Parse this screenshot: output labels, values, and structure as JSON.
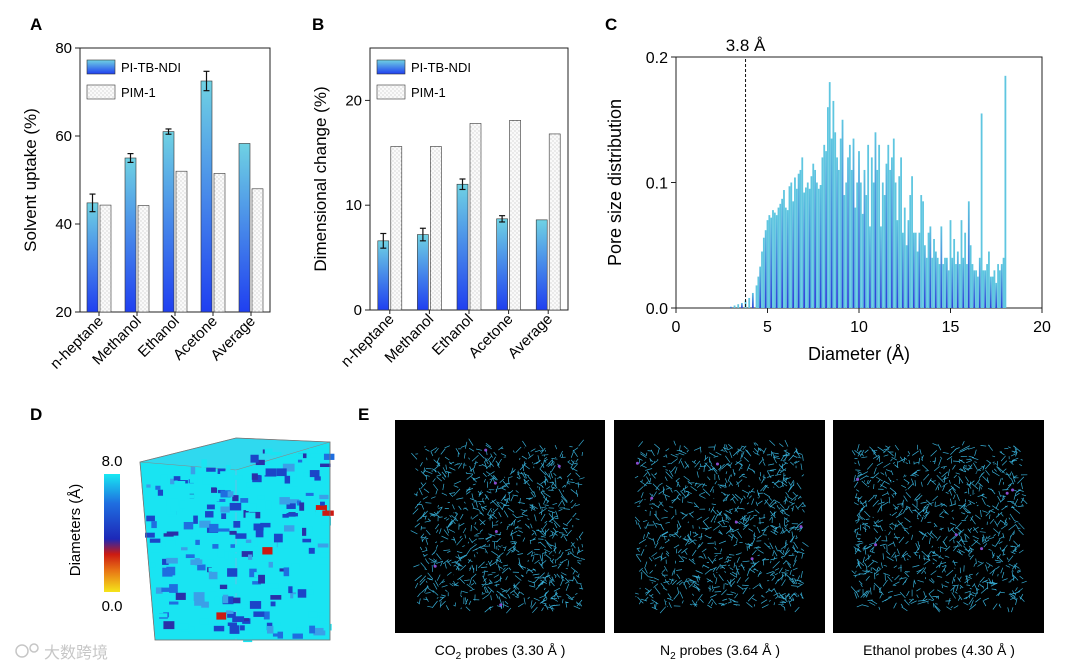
{
  "panels": {
    "a": {
      "letter": "A"
    },
    "b": {
      "letter": "B"
    },
    "c": {
      "letter": "C"
    },
    "d": {
      "letter": "D"
    },
    "e": {
      "letter": "E"
    }
  },
  "colors": {
    "bar_dark": "#1f3ff0",
    "bar_light": "#6fd2e3",
    "pim_fill": "#fafafa",
    "psd_bar_dark": "#2a42d8",
    "psd_bar_light": "#5fc6e0",
    "snapshot_bg": "#000000",
    "network": "#3cc0ec",
    "cube_cyan": "#19e4f2",
    "cube_blue": "#1b45c8"
  },
  "chart_data": [
    {
      "id": "a",
      "type": "bar",
      "categories": [
        "n-heptane",
        "Methanol",
        "Ethanol",
        "Acetone",
        "Average"
      ],
      "series": [
        {
          "name": "PI-TB-NDI",
          "values": [
            44.8,
            55.0,
            61.0,
            72.5,
            58.3
          ],
          "errors": [
            2.0,
            1.0,
            0.6,
            2.2,
            0
          ]
        },
        {
          "name": "PIM-1",
          "values": [
            44.3,
            44.2,
            52.0,
            51.5,
            48.0
          ],
          "errors": [
            0,
            0,
            0,
            0,
            0
          ]
        }
      ],
      "ylabel": "Solvent uptake (%)",
      "xlabel": "",
      "ylim": [
        20,
        80
      ],
      "yticks": [
        20,
        40,
        60,
        80
      ],
      "legend_position": "top-left"
    },
    {
      "id": "b",
      "type": "bar",
      "categories": [
        "n-heptane",
        "Methanol",
        "Ethanol",
        "Acetone",
        "Average"
      ],
      "series": [
        {
          "name": "PI-TB-NDI",
          "values": [
            6.6,
            7.2,
            12.0,
            8.7,
            8.6
          ],
          "errors": [
            0.7,
            0.6,
            0.5,
            0.3,
            0
          ]
        },
        {
          "name": "PIM-1",
          "values": [
            15.6,
            15.6,
            17.8,
            18.1,
            16.8
          ],
          "errors": [
            0,
            0,
            0,
            0,
            0
          ]
        }
      ],
      "ylabel": "Dimensional change (%)",
      "xlabel": "",
      "ylim": [
        0,
        25
      ],
      "yticks": [
        0,
        10,
        20
      ],
      "legend_position": "top-left"
    },
    {
      "id": "c",
      "type": "bar",
      "title": "",
      "xlabel": "Diameter (Å)",
      "ylabel": "Pore size distribution",
      "xlim": [
        0,
        20
      ],
      "ylim": [
        0,
        0.2
      ],
      "xticks": [
        0,
        5,
        10,
        15,
        20
      ],
      "yticks": [
        0.0,
        0.1,
        0.2
      ],
      "ytick_labels": [
        "0.0",
        "0.1",
        "0.2"
      ],
      "annotation": {
        "text": "3.8 Å",
        "x": 3.8
      },
      "x": [
        3.0,
        3.2,
        3.4,
        3.6,
        3.8,
        4.0,
        4.2,
        4.4,
        4.5,
        4.6,
        4.7,
        4.8,
        4.9,
        5.0,
        5.1,
        5.2,
        5.3,
        5.4,
        5.5,
        5.6,
        5.7,
        5.8,
        5.9,
        6.0,
        6.1,
        6.2,
        6.3,
        6.4,
        6.5,
        6.6,
        6.7,
        6.8,
        6.9,
        7.0,
        7.1,
        7.2,
        7.3,
        7.4,
        7.5,
        7.6,
        7.7,
        7.8,
        7.9,
        8.0,
        8.1,
        8.2,
        8.3,
        8.4,
        8.5,
        8.6,
        8.7,
        8.8,
        8.9,
        9.0,
        9.1,
        9.2,
        9.3,
        9.4,
        9.5,
        9.6,
        9.7,
        9.8,
        9.9,
        10.0,
        10.1,
        10.2,
        10.3,
        10.4,
        10.5,
        10.6,
        10.7,
        10.8,
        10.9,
        11.0,
        11.1,
        11.2,
        11.3,
        11.4,
        11.5,
        11.6,
        11.7,
        11.8,
        11.9,
        12.0,
        12.1,
        12.2,
        12.3,
        12.4,
        12.5,
        12.6,
        12.7,
        12.8,
        12.9,
        13.0,
        13.1,
        13.2,
        13.3,
        13.4,
        13.5,
        13.6,
        13.7,
        13.8,
        13.9,
        14.0,
        14.1,
        14.2,
        14.3,
        14.4,
        14.5,
        14.6,
        14.7,
        14.8,
        14.9,
        15.0,
        15.1,
        15.2,
        15.3,
        15.4,
        15.5,
        15.6,
        15.7,
        15.8,
        15.9,
        16.0,
        16.1,
        16.2,
        16.3,
        16.4,
        16.5,
        16.6,
        16.7,
        16.8,
        16.9,
        17.0,
        17.1,
        17.2,
        17.3,
        17.4,
        17.5,
        17.6,
        17.7,
        17.8,
        17.9,
        18.0
      ],
      "values": [
        0.001,
        0.002,
        0.003,
        0.004,
        0.006,
        0.008,
        0.012,
        0.018,
        0.025,
        0.033,
        0.045,
        0.056,
        0.062,
        0.07,
        0.074,
        0.072,
        0.078,
        0.076,
        0.074,
        0.08,
        0.083,
        0.087,
        0.094,
        0.08,
        0.078,
        0.097,
        0.1,
        0.085,
        0.104,
        0.095,
        0.107,
        0.11,
        0.12,
        0.092,
        0.096,
        0.1,
        0.095,
        0.105,
        0.115,
        0.11,
        0.1,
        0.095,
        0.098,
        0.12,
        0.13,
        0.125,
        0.16,
        0.18,
        0.135,
        0.165,
        0.14,
        0.12,
        0.11,
        0.135,
        0.15,
        0.09,
        0.1,
        0.12,
        0.13,
        0.11,
        0.135,
        0.08,
        0.1,
        0.125,
        0.1,
        0.075,
        0.11,
        0.09,
        0.13,
        0.065,
        0.12,
        0.1,
        0.14,
        0.11,
        0.13,
        0.065,
        0.1,
        0.09,
        0.115,
        0.13,
        0.11,
        0.12,
        0.135,
        0.1,
        0.07,
        0.105,
        0.12,
        0.06,
        0.08,
        0.05,
        0.07,
        0.09,
        0.105,
        0.06,
        0.06,
        0.045,
        0.06,
        0.09,
        0.085,
        0.05,
        0.04,
        0.06,
        0.065,
        0.04,
        0.055,
        0.045,
        0.04,
        0.035,
        0.065,
        0.035,
        0.04,
        0.04,
        0.03,
        0.07,
        0.04,
        0.055,
        0.035,
        0.045,
        0.035,
        0.07,
        0.04,
        0.06,
        0.035,
        0.085,
        0.05,
        0.035,
        0.03,
        0.03,
        0.025,
        0.04,
        0.155,
        0.03,
        0.03,
        0.035,
        0.045,
        0.025,
        0.025,
        0.03,
        0.02,
        0.035,
        0.03,
        0.035,
        0.04,
        0.185
      ]
    }
  ],
  "panel_d": {
    "colorbar_max": "8.0",
    "colorbar_min": "0.0",
    "colorbar_label": "Diameters (Å)"
  },
  "panel_e": {
    "captions": [
      {
        "prefix": "CO",
        "sub": "2",
        "suffix": " probes (3.30 Å )"
      },
      {
        "prefix": "N",
        "sub": "2",
        "suffix": " probes (3.64 Å )"
      },
      {
        "prefix": "Ethanol probes (4.30 Å )",
        "sub": "",
        "suffix": ""
      }
    ]
  },
  "watermark": {
    "text": "大数跨境"
  }
}
